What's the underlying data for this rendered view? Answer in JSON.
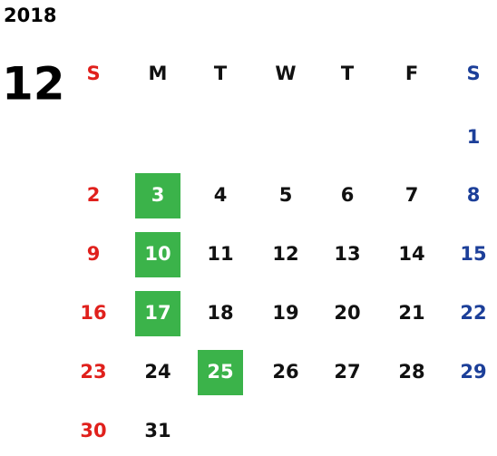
{
  "year": "2018",
  "month": "12",
  "weekdays": [
    "S",
    "M",
    "T",
    "W",
    "T",
    "F",
    "S"
  ],
  "weeks": [
    [
      null,
      null,
      null,
      null,
      null,
      null,
      1
    ],
    [
      2,
      3,
      4,
      5,
      6,
      7,
      8
    ],
    [
      9,
      10,
      11,
      12,
      13,
      14,
      15
    ],
    [
      16,
      17,
      18,
      19,
      20,
      21,
      22
    ],
    [
      23,
      24,
      25,
      26,
      27,
      28,
      29
    ],
    [
      30,
      31,
      null,
      null,
      null,
      null,
      null
    ]
  ],
  "highlighted_days": [
    3,
    10,
    17,
    25
  ],
  "sunday_color": "#e0201c",
  "saturday_color": "#1c3f99",
  "weekday_color": "#111111",
  "highlight_color": "#3bb34a"
}
